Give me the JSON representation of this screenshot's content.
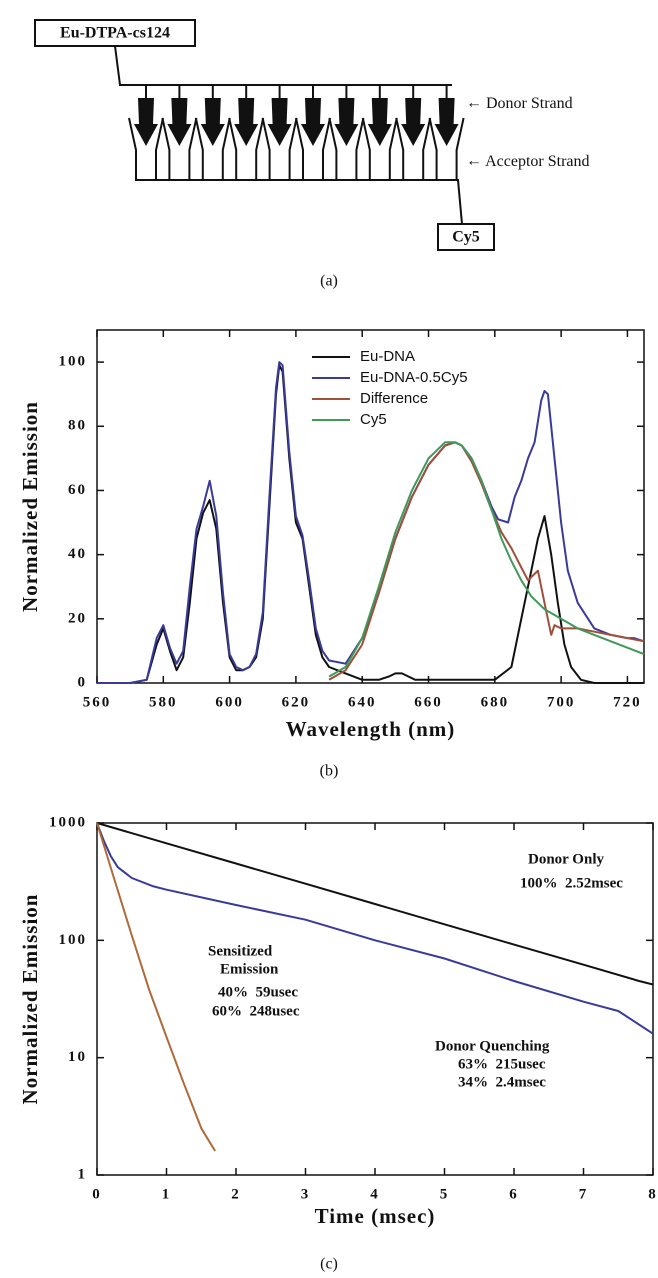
{
  "diagram": {
    "donor_label": "Eu-DTPA-cs124",
    "acceptor_label": "Cy5",
    "strands": [
      "Donor Strand",
      "Acceptor Strand"
    ]
  },
  "captions": [
    "(a)",
    "(b)",
    "(c)"
  ],
  "chart_data": [
    {
      "type": "line",
      "x_label": "Wavelength (nm)",
      "y_label": "Normalized Emission",
      "xlim": [
        560,
        725
      ],
      "ylim": [
        0,
        110
      ],
      "xticks": [
        560,
        580,
        600,
        620,
        640,
        660,
        680,
        700,
        720
      ],
      "yticks": [
        0,
        20,
        40,
        60,
        80,
        100
      ],
      "grid": false,
      "legend": "top-center",
      "series": [
        {
          "name": "Eu-DNA",
          "color": "#111111",
          "x": [
            560,
            570,
            575,
            578,
            580,
            582,
            584,
            586,
            588,
            590,
            592,
            594,
            596,
            598,
            600,
            602,
            604,
            606,
            608,
            610,
            612,
            614,
            615,
            616,
            618,
            620,
            622,
            624,
            626,
            628,
            630,
            635,
            640,
            645,
            648,
            650,
            652,
            654,
            656,
            660,
            670,
            680,
            685,
            688,
            691,
            693,
            695,
            697,
            699,
            701,
            703,
            706,
            710,
            720,
            725
          ],
          "values": [
            0,
            0,
            1,
            12,
            17,
            10,
            4,
            8,
            25,
            45,
            53,
            57,
            48,
            25,
            8,
            4,
            4,
            5,
            8,
            20,
            55,
            90,
            99,
            97,
            70,
            50,
            45,
            30,
            15,
            8,
            5,
            3,
            1,
            1,
            2,
            3,
            3,
            2,
            1,
            1,
            1,
            1,
            5,
            20,
            35,
            45,
            52,
            40,
            25,
            12,
            5,
            1,
            0,
            0,
            0
          ]
        },
        {
          "name": "Eu-DNA-0.5Cy5",
          "color": "#3a3a9a",
          "x": [
            560,
            570,
            575,
            578,
            580,
            582,
            584,
            586,
            588,
            590,
            592,
            594,
            596,
            598,
            600,
            602,
            604,
            606,
            608,
            610,
            612,
            614,
            615,
            616,
            618,
            620,
            622,
            624,
            626,
            628,
            630,
            635,
            640,
            645,
            650,
            655,
            660,
            665,
            668,
            670,
            673,
            676,
            679,
            681,
            684,
            686,
            688,
            690,
            692,
            694,
            695,
            696,
            698,
            700,
            702,
            705,
            710,
            715,
            720,
            722,
            725
          ],
          "values": [
            0,
            0,
            1,
            14,
            18,
            11,
            6,
            10,
            30,
            48,
            55,
            63,
            52,
            28,
            9,
            5,
            4,
            5,
            9,
            22,
            58,
            92,
            100,
            99,
            72,
            52,
            46,
            32,
            17,
            10,
            7,
            6,
            14,
            28,
            45,
            58,
            68,
            74,
            75,
            74,
            70,
            63,
            55,
            51,
            50,
            58,
            63,
            70,
            75,
            88,
            91,
            90,
            70,
            50,
            35,
            25,
            17,
            15,
            14,
            14,
            13
          ]
        },
        {
          "name": "Difference",
          "color": "#a0503a",
          "x": [
            630,
            635,
            640,
            645,
            650,
            655,
            660,
            665,
            668,
            670,
            673,
            676,
            679,
            682,
            685,
            688,
            690,
            692,
            693,
            695,
            697,
            698,
            700,
            705,
            710,
            715,
            720,
            725
          ],
          "values": [
            1,
            4,
            12,
            28,
            45,
            58,
            68,
            74,
            75,
            74,
            69,
            62,
            54,
            47,
            42,
            36,
            32,
            34,
            35,
            25,
            15,
            18,
            17,
            17,
            16,
            15,
            14,
            13
          ]
        },
        {
          "name": "Cy5",
          "color": "#3f9a5a",
          "x": [
            630,
            635,
            640,
            645,
            650,
            655,
            660,
            665,
            668,
            670,
            673,
            676,
            679,
            682,
            685,
            688,
            691,
            695,
            700,
            705,
            710,
            715,
            720,
            725
          ],
          "values": [
            2,
            5,
            14,
            30,
            47,
            60,
            70,
            75,
            75,
            74,
            70,
            63,
            54,
            45,
            38,
            32,
            27,
            23,
            20,
            17,
            15,
            13,
            11,
            9
          ]
        }
      ]
    },
    {
      "type": "line",
      "x_label": "Time (msec)",
      "y_label": "Normalized Emission",
      "xlim": [
        0,
        8
      ],
      "ylim": [
        1,
        1000
      ],
      "log_y": true,
      "xticks": [
        0,
        1,
        2,
        3,
        4,
        5,
        6,
        7,
        8
      ],
      "yticks": [
        1,
        10,
        100,
        1000
      ],
      "grid": false,
      "series": [
        {
          "color": "#111111",
          "x": [
            0,
            1,
            2,
            3,
            4,
            5,
            6,
            7,
            7.8,
            8
          ],
          "values": [
            1000,
            672,
            452,
            304,
            204,
            137,
            92,
            62,
            45,
            42
          ]
        },
        {
          "color": "#3a3a9a",
          "x": [
            0,
            0.1,
            0.2,
            0.3,
            0.5,
            0.8,
            1,
            2,
            3,
            4,
            5,
            6,
            7,
            7.5,
            8
          ],
          "values": [
            1000,
            700,
            520,
            420,
            340,
            290,
            270,
            200,
            150,
            100,
            70,
            45,
            30,
            25,
            16
          ]
        },
        {
          "color": "#b06a3a",
          "x": [
            0,
            0.25,
            0.5,
            0.75,
            1,
            1.25,
            1.5,
            1.7
          ],
          "values": [
            1000,
            330,
            110,
            38,
            15,
            6,
            2.5,
            1.6
          ]
        }
      ],
      "annotations": [
        {
          "text": "Donor Only",
          "color": "#111111"
        },
        {
          "text": "100%  2.52msec",
          "color": "#111111"
        },
        {
          "text": "Sensitized",
          "color": "#b06a3a"
        },
        {
          "text": "Emission",
          "color": "#b06a3a"
        },
        {
          "text": "40%  59usec",
          "color": "#b06a3a"
        },
        {
          "text": "60%  248usec",
          "color": "#b06a3a"
        },
        {
          "text": "Donor Quenching",
          "color": "#3a3a9a"
        },
        {
          "text": "63%  215usec",
          "color": "#3a3a9a"
        },
        {
          "text": "34%  2.4msec",
          "color": "#3a3a9a"
        }
      ]
    }
  ]
}
